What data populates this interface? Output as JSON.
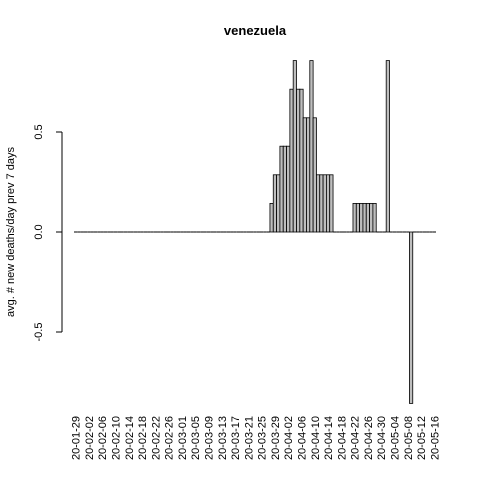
{
  "chart_data": {
    "type": "bar",
    "title": "venezuela",
    "xlabel": "",
    "ylabel": "avg. # new deaths/day prev  7  days",
    "ylim": [
      -0.88,
      0.88
    ],
    "yticks": [
      -0.5,
      0.0,
      0.5
    ],
    "ytick_labels": [
      "-0.5",
      "0.0",
      "0.5"
    ],
    "grid": false,
    "legend": "none",
    "bar_fill": "#bebebe",
    "bar_stroke": "#000000",
    "xtick_labels": [
      "20-01-29",
      "20-02-02",
      "20-02-06",
      "20-02-10",
      "20-02-14",
      "20-02-18",
      "20-02-22",
      "20-02-26",
      "20-03-01",
      "20-03-05",
      "20-03-09",
      "20-03-13",
      "20-03-17",
      "20-03-21",
      "20-03-25",
      "20-03-29",
      "20-04-02",
      "20-04-06",
      "20-04-10",
      "20-04-14",
      "20-04-18",
      "20-04-22",
      "20-04-26",
      "20-04-30",
      "20-05-04",
      "20-05-08",
      "20-05-12",
      "20-05-16"
    ],
    "categories": [
      "20-01-29",
      "20-01-30",
      "20-01-31",
      "20-02-01",
      "20-02-02",
      "20-02-03",
      "20-02-04",
      "20-02-05",
      "20-02-06",
      "20-02-07",
      "20-02-08",
      "20-02-09",
      "20-02-10",
      "20-02-11",
      "20-02-12",
      "20-02-13",
      "20-02-14",
      "20-02-15",
      "20-02-16",
      "20-02-17",
      "20-02-18",
      "20-02-19",
      "20-02-20",
      "20-02-21",
      "20-02-22",
      "20-02-23",
      "20-02-24",
      "20-02-25",
      "20-02-26",
      "20-02-27",
      "20-02-28",
      "20-02-29",
      "20-03-01",
      "20-03-02",
      "20-03-03",
      "20-03-04",
      "20-03-05",
      "20-03-06",
      "20-03-07",
      "20-03-08",
      "20-03-09",
      "20-03-10",
      "20-03-11",
      "20-03-12",
      "20-03-13",
      "20-03-14",
      "20-03-15",
      "20-03-16",
      "20-03-17",
      "20-03-18",
      "20-03-19",
      "20-03-20",
      "20-03-21",
      "20-03-22",
      "20-03-23",
      "20-03-24",
      "20-03-25",
      "20-03-26",
      "20-03-27",
      "20-03-28",
      "20-03-29",
      "20-03-30",
      "20-03-31",
      "20-04-01",
      "20-04-02",
      "20-04-03",
      "20-04-04",
      "20-04-05",
      "20-04-06",
      "20-04-07",
      "20-04-08",
      "20-04-09",
      "20-04-10",
      "20-04-11",
      "20-04-12",
      "20-04-13",
      "20-04-14",
      "20-04-15",
      "20-04-16",
      "20-04-17",
      "20-04-18",
      "20-04-19",
      "20-04-20",
      "20-04-21",
      "20-04-22",
      "20-04-23",
      "20-04-24",
      "20-04-25",
      "20-04-26",
      "20-04-27",
      "20-04-28",
      "20-04-29",
      "20-04-30",
      "20-05-01",
      "20-05-02",
      "20-05-03",
      "20-05-04",
      "20-05-05",
      "20-05-06",
      "20-05-07",
      "20-05-08",
      "20-05-09",
      "20-05-10",
      "20-05-11",
      "20-05-12",
      "20-05-13",
      "20-05-14",
      "20-05-15",
      "20-05-16"
    ],
    "values": [
      0,
      0,
      0,
      0,
      0,
      0,
      0,
      0,
      0,
      0,
      0,
      0,
      0,
      0,
      0,
      0,
      0,
      0,
      0,
      0,
      0,
      0,
      0,
      0,
      0,
      0,
      0,
      0,
      0,
      0,
      0,
      0,
      0,
      0,
      0,
      0,
      0,
      0,
      0,
      0,
      0,
      0,
      0,
      0,
      0,
      0,
      0,
      0,
      0,
      0,
      0,
      0,
      0,
      0,
      0,
      0,
      0,
      0,
      0,
      0.143,
      0.286,
      0.286,
      0.429,
      0.429,
      0.429,
      0.714,
      0.857,
      0.714,
      0.714,
      0.571,
      0.571,
      0.857,
      0.571,
      0.286,
      0.286,
      0.286,
      0.286,
      0.286,
      0,
      0,
      0,
      0,
      0,
      0,
      0.143,
      0.143,
      0.143,
      0.143,
      0.143,
      0.143,
      0.143,
      0,
      0,
      0,
      0.857,
      0,
      0,
      0,
      0,
      0,
      0,
      -0.857,
      0,
      0,
      0,
      0,
      0,
      0,
      0
    ]
  }
}
